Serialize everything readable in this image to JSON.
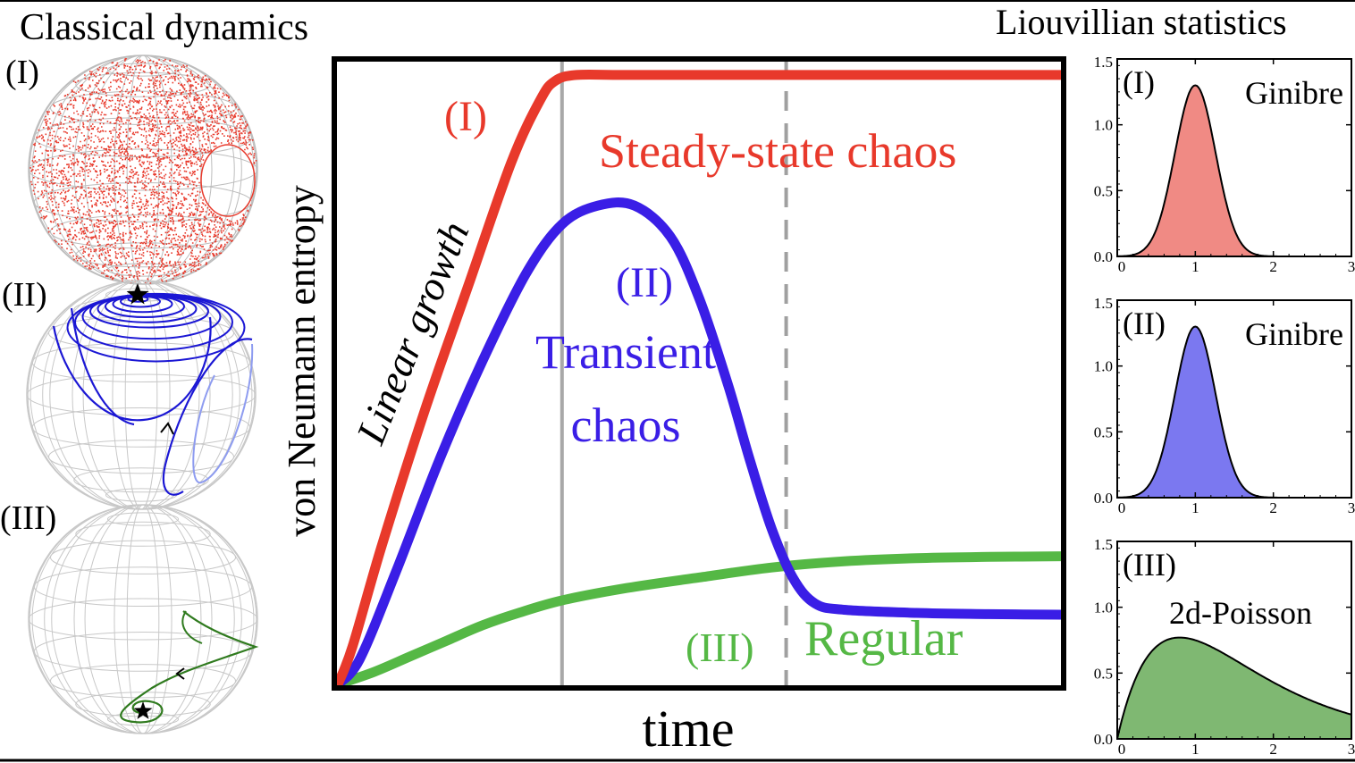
{
  "titles": {
    "left": "Classical dynamics",
    "right": "Liouvillian statistics"
  },
  "spheres": [
    {
      "label": "(I)"
    },
    {
      "label": "(II)"
    },
    {
      "label": "(III)"
    }
  ],
  "main_chart": {
    "xlabel": "time",
    "ylabel": "von Neumann entropy",
    "annotations": {
      "linear_growth": "Linear growth",
      "curve_I_label": "(I)",
      "curve_I_text": "Steady-state chaos",
      "curve_II_label": "(II)",
      "curve_II_text_1": "Transient",
      "curve_II_text_2": "chaos",
      "curve_III_label": "(III)",
      "curve_III_text": "Regular"
    },
    "colors": {
      "I": "#e8392b",
      "II": "#3a1ee6",
      "III": "#55b845",
      "solid_vline": "#a8a8a8",
      "dashed_vline": "#a0a0a0"
    }
  },
  "chart_data": [
    {
      "type": "line",
      "xlabel": "time",
      "ylabel": "von Neumann entropy",
      "xlim": [
        0,
        100
      ],
      "ylim": [
        0,
        100
      ],
      "vertical_lines": [
        {
          "x": 31,
          "style": "solid"
        },
        {
          "x": 62,
          "style": "dashed"
        }
      ],
      "series": [
        {
          "name": "(I)",
          "color": "#e8392b",
          "x": [
            0,
            2,
            6,
            12,
            18,
            24,
            28,
            30,
            33,
            40,
            60,
            80,
            100
          ],
          "y": [
            0,
            6,
            22,
            44,
            64,
            84,
            94,
            97,
            98,
            98,
            98,
            98,
            98
          ]
        },
        {
          "name": "(II)",
          "color": "#3a1ee6",
          "x": [
            0,
            3,
            8,
            14,
            20,
            26,
            31,
            36,
            41,
            46,
            50,
            54,
            57,
            60,
            63,
            66,
            70,
            80,
            90,
            100
          ],
          "y": [
            0,
            4,
            18,
            36,
            52,
            66,
            74,
            77,
            77,
            72,
            62,
            48,
            36,
            25,
            17,
            13,
            12,
            11.5,
            11.3,
            11.2
          ]
        },
        {
          "name": "(III)",
          "color": "#55b845",
          "x": [
            0,
            5,
            10,
            15,
            20,
            25,
            31,
            40,
            50,
            60,
            70,
            80,
            90,
            100
          ],
          "y": [
            0,
            2,
            4.5,
            7,
            9.5,
            11.5,
            13.5,
            15.5,
            17.2,
            18.8,
            19.8,
            20.3,
            20.5,
            20.6
          ]
        }
      ]
    },
    {
      "type": "area",
      "title": "Ginibre",
      "panel_label": "(I)",
      "xlim": [
        0,
        3
      ],
      "ylim": [
        0,
        1.5
      ],
      "x_ticks": [
        "0",
        "1",
        "2",
        "3"
      ],
      "y_ticks": [
        "0.0",
        "0.5",
        "1.0",
        "1.5"
      ],
      "fill": "#f08a84",
      "peak_x": 1.0,
      "peak_y": 1.3
    },
    {
      "type": "area",
      "title": "Ginibre",
      "panel_label": "(II)",
      "xlim": [
        0,
        3
      ],
      "ylim": [
        0,
        1.5
      ],
      "x_ticks": [
        "0",
        "1",
        "2",
        "3"
      ],
      "y_ticks": [
        "0.0",
        "0.5",
        "1.0",
        "1.5"
      ],
      "fill": "#7b78f0",
      "peak_x": 1.0,
      "peak_y": 1.3
    },
    {
      "type": "area",
      "title": "2d-Poisson",
      "panel_label": "(III)",
      "xlim": [
        0,
        3
      ],
      "ylim": [
        0,
        1.5
      ],
      "x_ticks": [
        "0",
        "1",
        "2",
        "3"
      ],
      "y_ticks": [
        "0.0",
        "0.5",
        "1.0",
        "1.5"
      ],
      "fill": "#7fb872",
      "peak_x": 0.8,
      "peak_y": 0.77
    }
  ]
}
